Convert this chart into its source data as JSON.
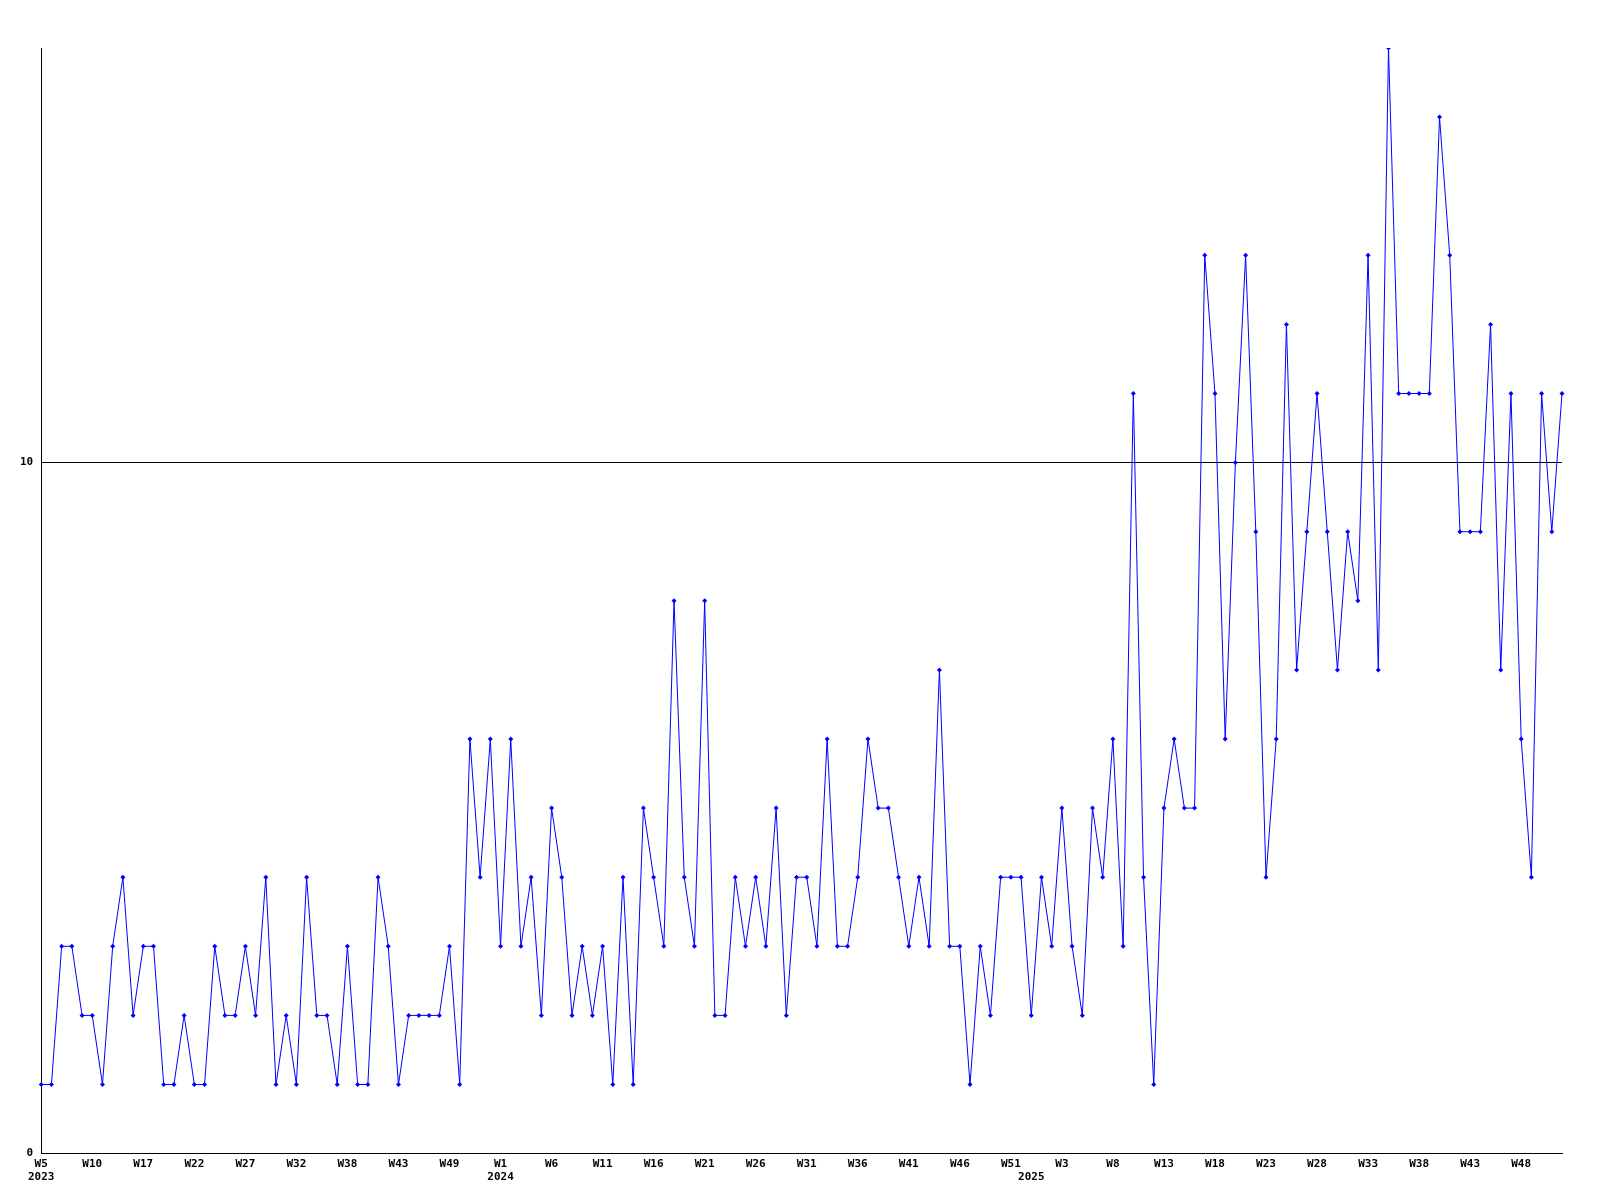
{
  "chart_data": {
    "type": "line",
    "categories": [
      "W5\n2023",
      null,
      null,
      null,
      null,
      "W10",
      null,
      null,
      null,
      null,
      "W17",
      null,
      null,
      null,
      null,
      "W22",
      null,
      null,
      null,
      null,
      "W27",
      null,
      null,
      null,
      null,
      "W32",
      null,
      null,
      null,
      null,
      "W38",
      null,
      null,
      null,
      null,
      "W43",
      null,
      null,
      null,
      null,
      "W49",
      null,
      null,
      null,
      null,
      "W1\n2024",
      null,
      null,
      null,
      null,
      "W6",
      null,
      null,
      null,
      null,
      "W11",
      null,
      null,
      null,
      null,
      "W16",
      null,
      null,
      null,
      null,
      "W21",
      null,
      null,
      null,
      null,
      "W26",
      null,
      null,
      null,
      null,
      "W31",
      null,
      null,
      null,
      null,
      "W36",
      null,
      null,
      null,
      null,
      "W41",
      null,
      null,
      null,
      null,
      "W46",
      null,
      null,
      null,
      null,
      "W51",
      null,
      "\n2025",
      null,
      null,
      "W3",
      null,
      null,
      null,
      null,
      "W8",
      null,
      null,
      null,
      null,
      "W13",
      null,
      null,
      null,
      null,
      "W18",
      null,
      null,
      null,
      null,
      "W23",
      null,
      null,
      null,
      null,
      "W28",
      null,
      null,
      null,
      null,
      "W33",
      null,
      null,
      null,
      null,
      "W38",
      null,
      null,
      null,
      null,
      "W43",
      null,
      null,
      null,
      null,
      "W48",
      null,
      null,
      null,
      null
    ],
    "series": [
      {
        "color": "#0000ff",
        "values": [
          1,
          1,
          3,
          3,
          2,
          2,
          1,
          3,
          4,
          2,
          3,
          3,
          1,
          1,
          2,
          1,
          1,
          3,
          2,
          2,
          3,
          2,
          4,
          1,
          2,
          1,
          4,
          2,
          2,
          1,
          3,
          1,
          1,
          4,
          3,
          1,
          2,
          2,
          2,
          2,
          3,
          1,
          6,
          4,
          6,
          3,
          6,
          3,
          4,
          2,
          5,
          4,
          2,
          3,
          2,
          3,
          1,
          4,
          1,
          5,
          4,
          3,
          8,
          4,
          3,
          8,
          2,
          2,
          4,
          3,
          4,
          3,
          5,
          2,
          4,
          4,
          3,
          6,
          3,
          3,
          4,
          6,
          5,
          5,
          4,
          3,
          4,
          3,
          7,
          3,
          3,
          1,
          3,
          2,
          4,
          4,
          4,
          2,
          4,
          3,
          5,
          3,
          2,
          5,
          4,
          6,
          3,
          11,
          4,
          1,
          5,
          6,
          5,
          5,
          13,
          11,
          6,
          10,
          13,
          9,
          4,
          6,
          12,
          7,
          9,
          11,
          9,
          7,
          9,
          8,
          13,
          7,
          16,
          11,
          11,
          11,
          11,
          15,
          13,
          9,
          9,
          9,
          12,
          7,
          11,
          6,
          4,
          11,
          9,
          11
        ]
      }
    ],
    "ylim": [
      0,
      16
    ],
    "yticks": [
      0,
      10
    ],
    "grid": "y",
    "legend": false,
    "marker": "diamond",
    "line_style": "solid"
  }
}
